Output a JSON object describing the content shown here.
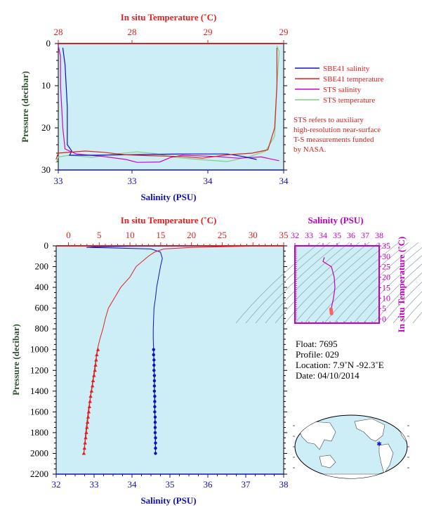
{
  "colors": {
    "plot_bg": "#cdeef6",
    "salinity": "#1010c0",
    "temperature": "#e02020",
    "sts_salinity": "#d000d0",
    "sts_temperature": "#80d080",
    "ts_axis": "#c000c0",
    "pressure_axis": "#305030"
  },
  "chart_data": [
    {
      "type": "line",
      "top_axis_title": "In situ Temperature (˚C)",
      "top_ticks": [
        "28",
        "28",
        "29",
        "29"
      ],
      "xlabel": "Salinity (PSU)",
      "bottom_ticks": [
        "33",
        "33",
        "34",
        "34"
      ],
      "ylabel": "Pressure (decibar)",
      "ylim": [
        30,
        0
      ],
      "yticks": [
        "0",
        "10",
        "20",
        "30"
      ],
      "temp_range": [
        28,
        29
      ],
      "sal_range": [
        33,
        34
      ],
      "grid": false,
      "series": [
        {
          "name": "SBE41 salinity",
          "axis": "salinity",
          "points": [
            [
              33.02,
              1
            ],
            [
              33.03,
              5
            ],
            [
              33.04,
              15
            ],
            [
              33.04,
              24
            ],
            [
              33.06,
              25.5
            ],
            [
              33.05,
              26.5
            ],
            [
              33.15,
              26.5
            ],
            [
              33.55,
              26.2
            ],
            [
              33.75,
              26.2
            ],
            [
              33.82,
              26.8
            ],
            [
              33.88,
              27.5
            ]
          ]
        },
        {
          "name": "SBE41 temperature",
          "axis": "temperature",
          "points": [
            [
              28.97,
              1
            ],
            [
              28.97,
              10
            ],
            [
              28.96,
              20
            ],
            [
              28.93,
              25.2
            ],
            [
              28.86,
              26
            ],
            [
              28.75,
              26.4
            ],
            [
              28.64,
              27.2
            ],
            [
              28.55,
              26.8
            ],
            [
              28.4,
              26.6
            ],
            [
              28.3,
              26.4
            ],
            [
              28.2,
              25.8
            ],
            [
              28.12,
              25.5
            ],
            [
              28.0,
              26
            ],
            [
              27.99,
              27.5
            ]
          ]
        },
        {
          "name": "STS salinity",
          "axis": "salinity",
          "points": [
            [
              33.0,
              0.5
            ],
            [
              33.01,
              3
            ],
            [
              33.01,
              10
            ],
            [
              33.02,
              20
            ],
            [
              33.03,
              25
            ],
            [
              33.08,
              26.2
            ],
            [
              33.2,
              26.8
            ],
            [
              33.3,
              27.5
            ],
            [
              33.35,
              28.2
            ],
            [
              33.45,
              28.1
            ],
            [
              33.5,
              27
            ],
            [
              33.55,
              26.5
            ],
            [
              33.7,
              26.8
            ],
            [
              33.8,
              27.2
            ],
            [
              33.9,
              26.9
            ],
            [
              33.98,
              27.8
            ]
          ]
        },
        {
          "name": "STS temperature",
          "axis": "temperature",
          "points": [
            [
              28.97,
              0.5
            ],
            [
              28.98,
              2
            ],
            [
              28.97,
              10
            ],
            [
              28.96,
              22
            ],
            [
              28.92,
              25.5
            ],
            [
              28.85,
              26.8
            ],
            [
              28.75,
              28
            ],
            [
              28.62,
              27.5
            ],
            [
              28.52,
              27
            ],
            [
              28.43,
              26.1
            ],
            [
              28.35,
              25.7
            ],
            [
              28.25,
              26.2
            ],
            [
              28.15,
              27
            ],
            [
              28.05,
              26.5
            ],
            [
              28.0,
              26.9
            ],
            [
              27.99,
              28.3
            ]
          ]
        }
      ],
      "legend": {
        "placement": "right",
        "entries": [
          {
            "name": "SBE41 salinity",
            "color_key": "salinity"
          },
          {
            "name": "SBE41 temperature",
            "color_key": "temperature"
          },
          {
            "name": "STS salinity",
            "color_key": "sts_salinity"
          },
          {
            "name": "STS temperature",
            "color_key": "sts_temperature"
          }
        ]
      },
      "note": [
        "STS refers to auxiliary",
        "high-resolution near-surface",
        "T-S measurements funded",
        "by NASA."
      ]
    },
    {
      "type": "line",
      "top_axis_title": "In situ Temperature (˚C)",
      "xlim_temp": [
        -2,
        35
      ],
      "top_ticks": [
        0,
        5,
        10,
        15,
        20,
        25,
        30,
        35
      ],
      "xlabel": "Salinity (PSU)",
      "xlim_sal": [
        32,
        38
      ],
      "bottom_ticks": [
        32,
        33,
        34,
        35,
        36,
        37,
        38
      ],
      "ylabel": "Pressure (decibar)",
      "ylim": [
        2200,
        0
      ],
      "yticks": [
        0,
        200,
        400,
        600,
        800,
        1000,
        1200,
        1400,
        1600,
        1800,
        2000,
        2200
      ],
      "grid": false,
      "series": [
        {
          "axis": "salinity",
          "points": [
            [
              37.0,
              0
            ],
            [
              34.0,
              4
            ],
            [
              33.0,
              10
            ],
            [
              32.8,
              15
            ],
            [
              33.5,
              20
            ],
            [
              34.5,
              30
            ],
            [
              34.75,
              60
            ],
            [
              34.8,
              120
            ],
            [
              34.75,
              200
            ],
            [
              34.7,
              300
            ],
            [
              34.65,
              400
            ],
            [
              34.62,
              500
            ],
            [
              34.58,
              600
            ],
            [
              34.57,
              700
            ],
            [
              34.56,
              800
            ],
            [
              34.56,
              900
            ],
            [
              34.57,
              1000
            ],
            [
              34.59,
              1300
            ],
            [
              34.6,
              1600
            ],
            [
              34.62,
              2000
            ]
          ],
          "markers": [
            [
              34.57,
              1000
            ],
            [
              34.57,
              1050
            ],
            [
              34.58,
              1100
            ],
            [
              34.58,
              1150
            ],
            [
              34.58,
              1200
            ],
            [
              34.59,
              1250
            ],
            [
              34.59,
              1300
            ],
            [
              34.59,
              1350
            ],
            [
              34.59,
              1400
            ],
            [
              34.6,
              1450
            ],
            [
              34.6,
              1500
            ],
            [
              34.6,
              1550
            ],
            [
              34.6,
              1600
            ],
            [
              34.61,
              1650
            ],
            [
              34.61,
              1700
            ],
            [
              34.61,
              1750
            ],
            [
              34.61,
              1800
            ],
            [
              34.62,
              1850
            ],
            [
              34.62,
              1900
            ],
            [
              34.62,
              1950
            ],
            [
              34.62,
              2000
            ]
          ]
        },
        {
          "axis": "temperature",
          "points": [
            [
              -2,
              0
            ],
            [
              29,
              0
            ],
            [
              29.3,
              3
            ],
            [
              20,
              15
            ],
            [
              15.5,
              30
            ],
            [
              14,
              60
            ],
            [
              13,
              100
            ],
            [
              11,
              200
            ],
            [
              10,
              300
            ],
            [
              8.5,
              400
            ],
            [
              7.5,
              500
            ],
            [
              6.5,
              600
            ],
            [
              6.0,
              700
            ],
            [
              5.6,
              800
            ],
            [
              5.1,
              900
            ],
            [
              4.7,
              1000
            ],
            [
              4.2,
              1200
            ],
            [
              3.7,
              1400
            ],
            [
              3.2,
              1600
            ],
            [
              2.8,
              1800
            ],
            [
              2.5,
              2000
            ]
          ],
          "markers": [
            [
              4.8,
              1000
            ],
            [
              4.6,
              1050
            ],
            [
              4.5,
              1100
            ],
            [
              4.4,
              1150
            ],
            [
              4.3,
              1200
            ],
            [
              4.15,
              1250
            ],
            [
              4.0,
              1300
            ],
            [
              3.9,
              1350
            ],
            [
              3.75,
              1400
            ],
            [
              3.6,
              1450
            ],
            [
              3.5,
              1500
            ],
            [
              3.4,
              1550
            ],
            [
              3.3,
              1600
            ],
            [
              3.2,
              1650
            ],
            [
              3.1,
              1700
            ],
            [
              3.0,
              1750
            ],
            [
              2.9,
              1800
            ],
            [
              2.8,
              1850
            ],
            [
              2.7,
              1900
            ],
            [
              2.6,
              1950
            ],
            [
              2.5,
              2000
            ]
          ]
        }
      ]
    },
    {
      "type": "scatter",
      "top_axis_title": "Salinity (PSU)",
      "top_ticks": [
        32,
        33,
        34,
        35,
        36,
        37,
        38
      ],
      "xlim": [
        32,
        38
      ],
      "right_axis_title": "In situ Temperature (˚C)",
      "right_ticks": [
        0,
        5,
        10,
        15,
        20,
        25,
        30,
        35
      ],
      "ylim": [
        -2,
        35
      ],
      "grid": false,
      "line_points": [
        [
          34.1,
          29.5
        ],
        [
          34.0,
          27.5
        ],
        [
          34.6,
          25
        ],
        [
          34.8,
          20
        ],
        [
          34.85,
          15
        ],
        [
          34.75,
          10
        ],
        [
          34.65,
          7
        ],
        [
          34.6,
          5
        ]
      ],
      "cluster_points": [
        [
          34.57,
          4.8
        ],
        [
          34.58,
          4.4
        ],
        [
          34.58,
          4.0
        ],
        [
          34.59,
          3.6
        ],
        [
          34.6,
          3.2
        ],
        [
          34.6,
          2.8
        ],
        [
          34.61,
          2.5
        ]
      ]
    }
  ],
  "float_info": {
    "float": "Float:  7695",
    "profile": "Profile:  029",
    "location": "Location:  7.9˚N  -92.3˚E",
    "date": "Date:  04/10/2014"
  }
}
